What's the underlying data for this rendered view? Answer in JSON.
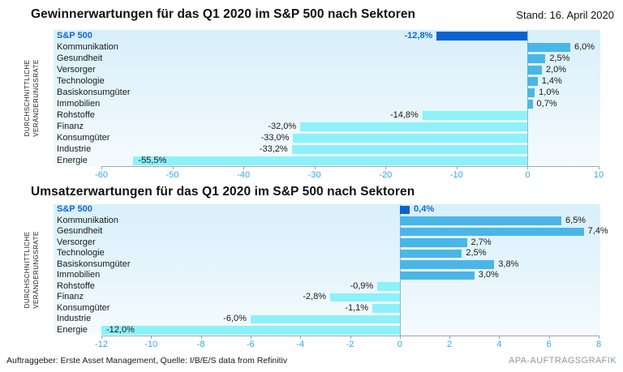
{
  "header": {
    "stand": "Stand: 16. April 2020"
  },
  "footer": {
    "source": "Auftraggeber: Erste Asset Management, Quelle: I/B/E/S data from Refinitiv",
    "credit": "APA-AUFTRAGSGRAFIK"
  },
  "colors": {
    "index_bar": "#0a62d0",
    "positive_bar": "#4ab6e8",
    "negative_bar": "#8df1f9",
    "index_text": "#1167d4",
    "tick_text": "#2fa9e8",
    "plot_bg_top": "#d8effa",
    "plot_bg_bottom": "#f4fbfe"
  },
  "chart_data": [
    {
      "type": "bar",
      "orientation": "horizontal",
      "title": "Gewinnerwartungen für das Q1 2020 im S&P 500 nach Sektoren",
      "ylabel": "DURCHSCHNITTLICHE VERÄNDERUNGSRATE",
      "ylabel_lines": [
        "DURCHSCHNITTLICHE",
        "VERÄNDERUNGSRATE"
      ],
      "categories": [
        "S&P 500",
        "Kommunikation",
        "Gesundheit",
        "Versorger",
        "Technologie",
        "Basiskonsumgüter",
        "Immobilien",
        "Rohstoffe",
        "Finanz",
        "Konsumgüter",
        "Industrie",
        "Energie"
      ],
      "values": [
        -12.8,
        6.0,
        2.5,
        2.0,
        1.4,
        1.0,
        0.7,
        -14.8,
        -32.0,
        -33.0,
        -33.2,
        -55.5
      ],
      "labels": [
        "-12,8%",
        "6,0%",
        "2,5%",
        "2,0%",
        "1,4%",
        "1,0%",
        "0,7%",
        "-14,8%",
        "-32,0%",
        "-33,0%",
        "-33,2%",
        "-55,5%"
      ],
      "xlim": [
        -60,
        10
      ],
      "xticks": [
        -60,
        -50,
        -40,
        -30,
        -20,
        -10,
        0,
        10
      ],
      "legend": "none",
      "grid": "zero-line-only"
    },
    {
      "type": "bar",
      "orientation": "horizontal",
      "title": "Umsatzerwartungen für das Q1 2020 im S&P 500 nach Sektoren",
      "ylabel": "DURCHSCHNITTLICHE VERÄNDERUNGSRATE",
      "ylabel_lines": [
        "DURCHSCHNITTLICHE",
        "VERÄNDERUNGSRATE"
      ],
      "categories": [
        "S&P 500",
        "Kommunikation",
        "Gesundheit",
        "Versorger",
        "Technologie",
        "Basiskonsumgüter",
        "Immobilien",
        "Rohstoffe",
        "Finanz",
        "Konsumgüter",
        "Industrie",
        "Energie"
      ],
      "values": [
        0.4,
        6.5,
        7.4,
        2.7,
        2.5,
        3.8,
        3.0,
        -0.9,
        -2.8,
        -1.1,
        -6.0,
        -12.0
      ],
      "labels": [
        "0,4%",
        "6,5%",
        "7,4%",
        "2,7%",
        "2,5%",
        "3,8%",
        "3,0%",
        "-0,9%",
        "-2,8%",
        "-1,1%",
        "-6,0%",
        "-12,0%"
      ],
      "xlim": [
        -12,
        8
      ],
      "xticks": [
        -12,
        -10,
        -8,
        -6,
        -4,
        -2,
        0,
        2,
        4,
        6,
        8
      ],
      "legend": "none",
      "grid": "zero-line-only"
    }
  ]
}
